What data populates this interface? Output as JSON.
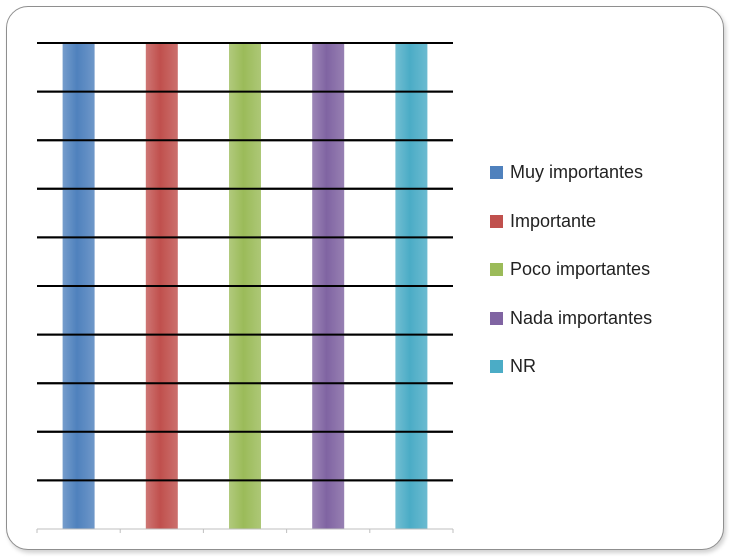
{
  "chart_data": {
    "type": "bar",
    "categories": [
      "Muy importantes",
      "Importante",
      "Poco importantes",
      "Nada importantes",
      "NR"
    ],
    "series": [
      {
        "name": "Muy importantes",
        "values": [
          100,
          null,
          null,
          null,
          null
        ]
      },
      {
        "name": "Importante",
        "values": [
          null,
          100,
          null,
          null,
          null
        ]
      },
      {
        "name": "Poco importantes",
        "values": [
          null,
          null,
          100,
          null,
          null
        ]
      },
      {
        "name": "Nada importantes",
        "values": [
          null,
          null,
          null,
          100,
          null
        ]
      },
      {
        "name": "NR",
        "values": [
          null,
          null,
          null,
          null,
          100
        ]
      }
    ],
    "ylim": [
      0,
      100
    ],
    "grid": true,
    "legend_position": "right",
    "colors": [
      "#4f81bd",
      "#c0504d",
      "#9bbb59",
      "#8064a2",
      "#4bacc6"
    ]
  },
  "legend": {
    "items": [
      {
        "label": "Muy importantes",
        "color": "#4f81bd"
      },
      {
        "label": "Importante",
        "color": "#c0504d"
      },
      {
        "label": "Poco importantes",
        "color": "#9bbb59"
      },
      {
        "label": "Nada importantes",
        "color": "#8064a2"
      },
      {
        "label": "NR",
        "color": "#4bacc6"
      }
    ]
  }
}
